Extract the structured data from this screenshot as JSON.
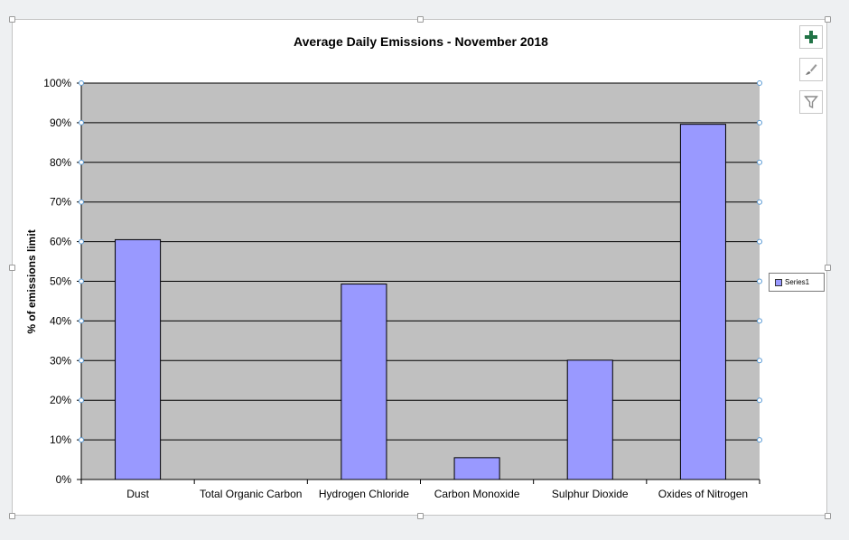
{
  "chart_data": {
    "type": "bar",
    "title": "Average Daily Emissions - November 2018",
    "ylabel": "% of emissions limit",
    "xlabel": "",
    "categories": [
      "Dust",
      "Total Organic Carbon",
      "Hydrogen Chloride",
      "Carbon Monoxide",
      "Sulphur Dioxide",
      "Oxides of Nitrogen"
    ],
    "series": [
      {
        "name": "Series1",
        "values": [
          60.5,
          0,
          49.3,
          5.5,
          30.1,
          89.6
        ]
      }
    ],
    "ylim": [
      0,
      100
    ],
    "yticks": [
      "0%",
      "10%",
      "20%",
      "30%",
      "40%",
      "50%",
      "60%",
      "70%",
      "80%",
      "90%",
      "100%"
    ],
    "grid": true,
    "legend": "right",
    "colors": {
      "bar": "#9999ff",
      "plot_background": "#c0c0c0",
      "gridline": "#000000"
    }
  },
  "side_buttons": [
    {
      "icon": "plus-icon"
    },
    {
      "icon": "brush-icon"
    },
    {
      "icon": "filter-icon"
    }
  ]
}
